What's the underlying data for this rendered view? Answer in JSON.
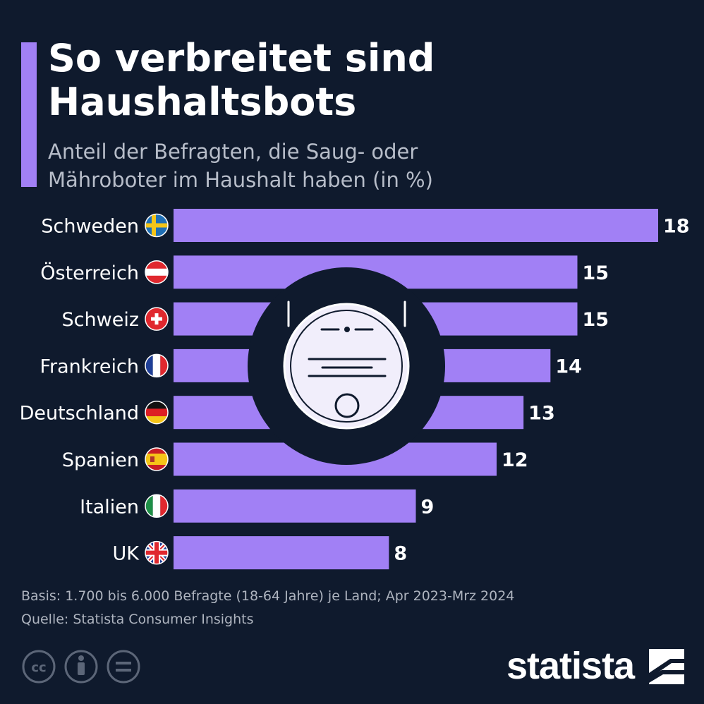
{
  "header": {
    "title": "So verbreitet sind Haushaltsbots",
    "subtitle": "Anteil der Befragten, die Saug- oder Mähroboter im Haushalt haben (in %)"
  },
  "chart_data": {
    "type": "bar",
    "orientation": "horizontal",
    "categories": [
      "Schweden",
      "Österreich",
      "Schweiz",
      "Frankreich",
      "Deutschland",
      "Spanien",
      "Italien",
      "UK"
    ],
    "values": [
      18,
      15,
      15,
      14,
      13,
      12,
      9,
      8
    ],
    "flags": [
      "flag-sweden-icon",
      "flag-austria-icon",
      "flag-switzerland-icon",
      "flag-france-icon",
      "flag-germany-icon",
      "flag-spain-icon",
      "flag-italy-icon",
      "flag-uk-icon"
    ],
    "title": "So verbreitet sind Haushaltsbots",
    "xlabel": "",
    "ylabel": "",
    "xlim": [
      0,
      18
    ],
    "colors": {
      "bar": "#a180f5",
      "background": "#0f1a2d"
    }
  },
  "footer": {
    "basis": "Basis: 1.700 bis 6.000 Befragte (18-64 Jahre) je Land; Apr 2023-Mrz 2024",
    "source": "Quelle: Statista Consumer Insights",
    "brand": "statista"
  }
}
